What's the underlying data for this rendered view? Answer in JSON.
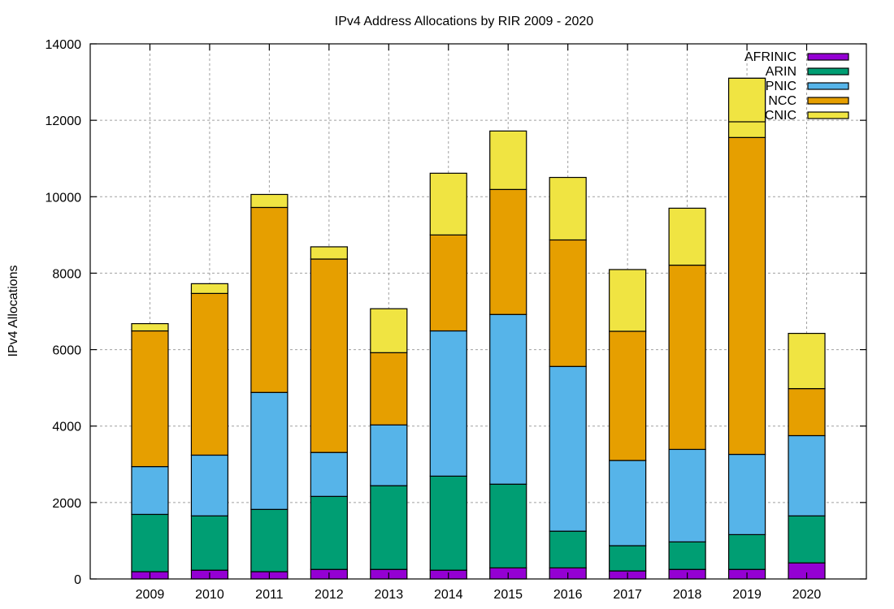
{
  "chart_data": {
    "type": "bar",
    "stacked": true,
    "title": "IPv4 Address Allocations by RIR 2009 - 2020",
    "xlabel": "",
    "ylabel": "IPv4 Allocations",
    "ylim": [
      0,
      14000
    ],
    "yticks": [
      0,
      2000,
      4000,
      6000,
      8000,
      10000,
      12000,
      14000
    ],
    "grid": true,
    "legend_position": "top-right",
    "categories": [
      "2009",
      "2010",
      "2011",
      "2012",
      "2013",
      "2014",
      "2015",
      "2016",
      "2017",
      "2018",
      "2019",
      "2020"
    ],
    "series": [
      {
        "name": "AFRINIC",
        "color": "#9400d3",
        "values": [
          190,
          230,
          190,
          250,
          250,
          230,
          290,
          290,
          210,
          250,
          250,
          420
        ]
      },
      {
        "name": "ARIN",
        "color": "#009e73",
        "values": [
          1500,
          1420,
          1630,
          1910,
          2190,
          2460,
          2190,
          960,
          660,
          720,
          910,
          1230
        ]
      },
      {
        "name": "APNIC",
        "color": "#56b4e9",
        "values": [
          1250,
          1590,
          3060,
          1150,
          1590,
          3800,
          4440,
          4310,
          2230,
          2420,
          2100,
          2100
        ]
      },
      {
        "name": "RIPE NCC",
        "color": "#e69f00",
        "values": [
          3550,
          4230,
          4840,
          5060,
          1890,
          2510,
          3270,
          3310,
          3380,
          4820,
          8290,
          1230
        ]
      },
      {
        "name": "LACNIC",
        "color": "#f0e442",
        "values": [
          190,
          255,
          340,
          320,
          1150,
          1615,
          1530,
          1635,
          1615,
          1490,
          1550,
          1445
        ]
      }
    ]
  }
}
